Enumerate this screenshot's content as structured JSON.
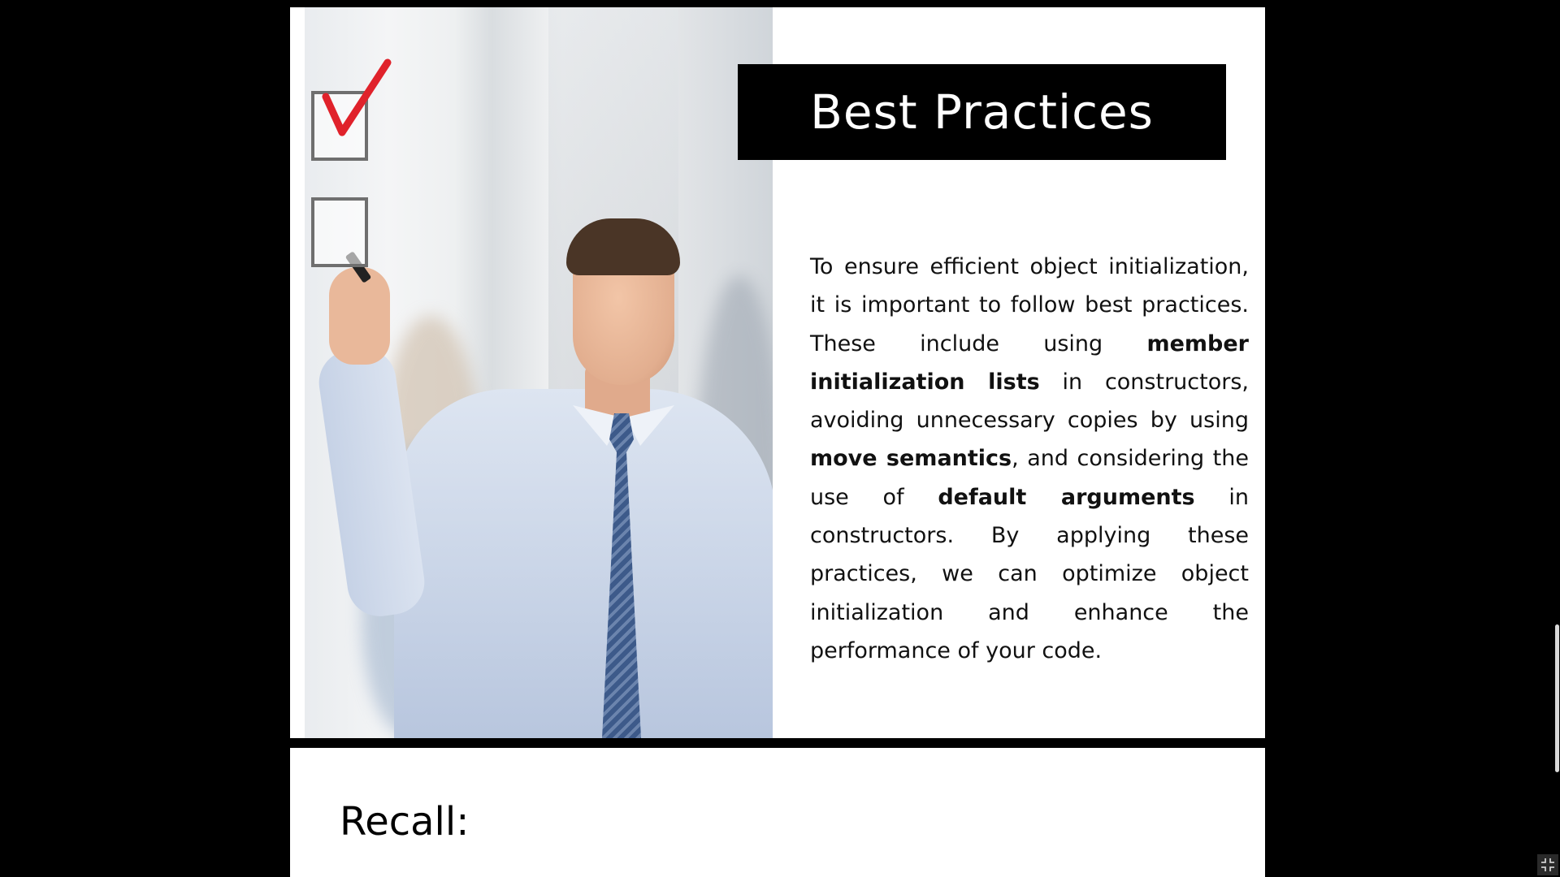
{
  "slide1": {
    "title": "Best Practices",
    "body": {
      "p1": "To ensure efficient object initialization, it is important to follow best practices. These include using ",
      "b1": "member initialization lists",
      "p2": " in constructors, avoiding unnecessary copies by using ",
      "b2": "move semantics",
      "p3": ", and considering the use of ",
      "b3": "default arguments",
      "p4": " in constructors. By applying these practices, we can optimize object initialization and enhance the performance of your code."
    },
    "checkboxes": [
      {
        "checked": true,
        "icon": "checkmark-icon"
      },
      {
        "checked": false
      }
    ],
    "colors": {
      "banner": "#000000",
      "checkmark": "#e0222b"
    }
  },
  "slide2": {
    "heading": "Recall:"
  },
  "controls": {
    "exit_fullscreen_icon": "exit-fullscreen-icon"
  }
}
